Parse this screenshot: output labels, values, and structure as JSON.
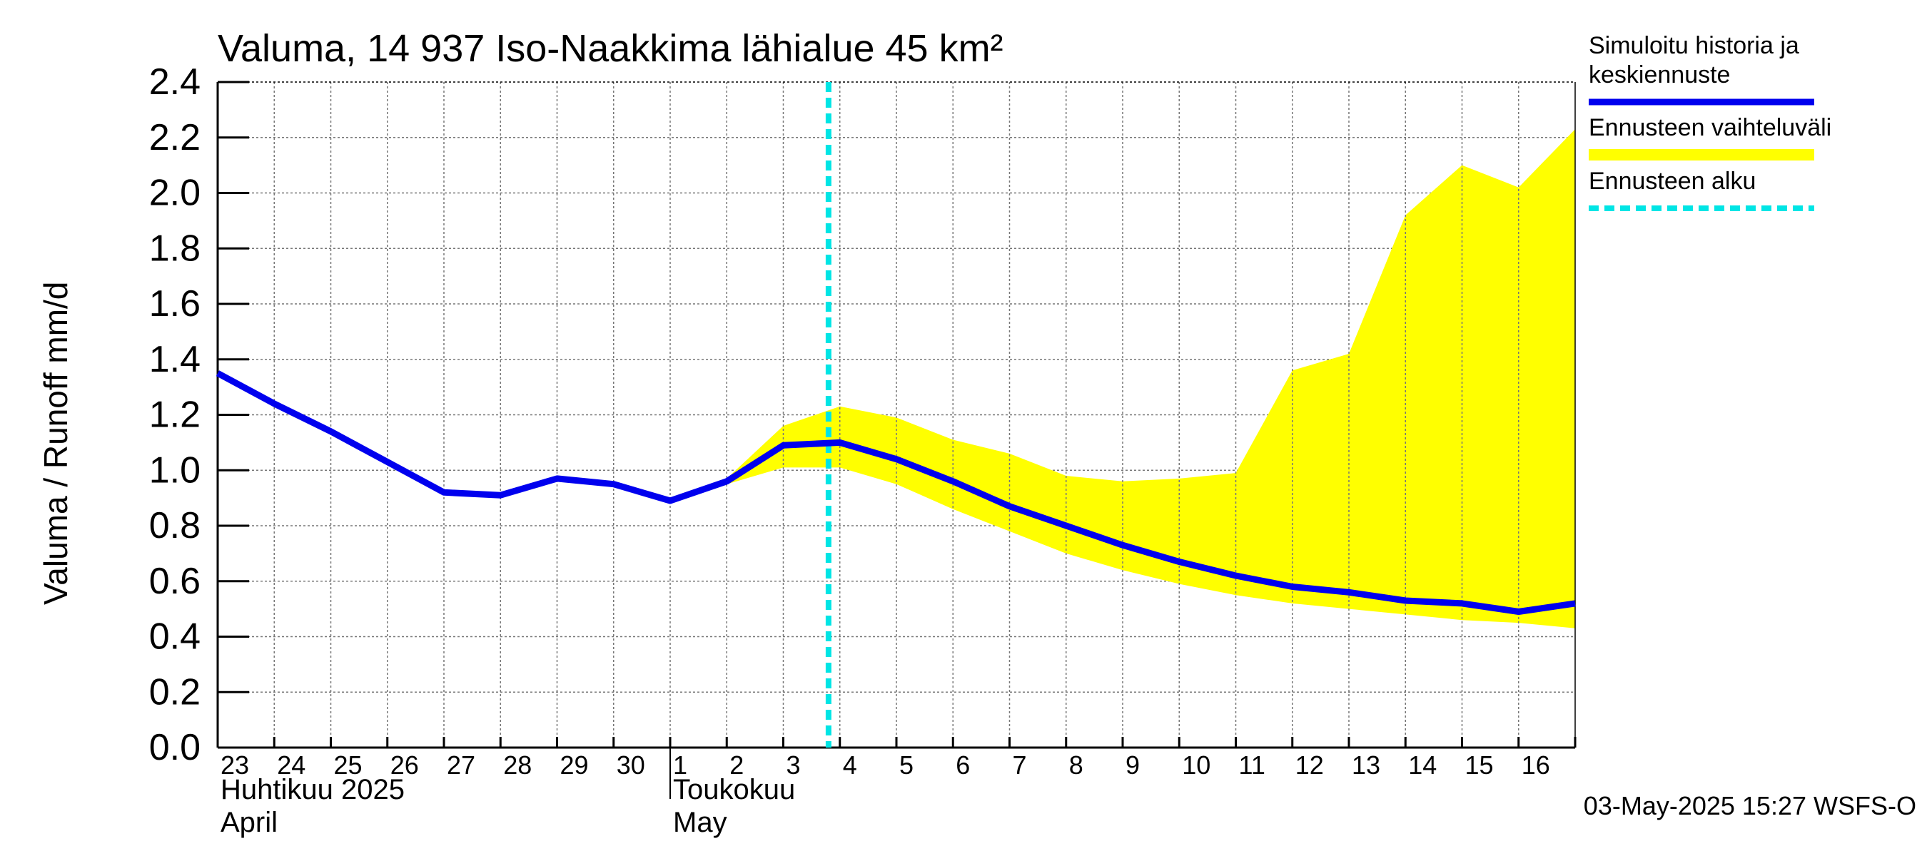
{
  "chart_data": {
    "type": "line",
    "title": "Valuma, 14 937 Iso-Naakkima lähialue 45 km²",
    "ylabel": "Valuma / Runoff     mm/d",
    "ylim": [
      0,
      2.4
    ],
    "yticks": [
      "0.0",
      "0.2",
      "0.4",
      "0.6",
      "0.8",
      "1.0",
      "1.2",
      "1.4",
      "1.6",
      "1.8",
      "2.0",
      "2.2",
      "2.4"
    ],
    "x_day_offset_range": [
      0,
      24
    ],
    "xtick_labels": [
      "23",
      "24",
      "25",
      "26",
      "27",
      "28",
      "29",
      "30",
      "1",
      "2",
      "3",
      "4",
      "5",
      "6",
      "7",
      "8",
      "9",
      "10",
      "11",
      "12",
      "13",
      "14",
      "15",
      "16"
    ],
    "month_labels": [
      {
        "fi": "Huhtikuu  2025",
        "en": "April",
        "start_offset": 0
      },
      {
        "fi": "Toukokuu",
        "en": "May",
        "start_offset": 8
      }
    ],
    "month_boundary_offset": 8,
    "forecast_start_offset": 10.8,
    "series": [
      {
        "name": "Simuloitu historia ja keskiennuste",
        "color": "#0000ee",
        "x": [
          0,
          1,
          2,
          3,
          4,
          5,
          6,
          7,
          8,
          9,
          10,
          11,
          12,
          13,
          14,
          15,
          16,
          17,
          18,
          19,
          20,
          21,
          22,
          23,
          24
        ],
        "y": [
          1.35,
          1.24,
          1.14,
          1.03,
          0.92,
          0.91,
          0.97,
          0.95,
          0.89,
          0.96,
          1.09,
          1.1,
          1.04,
          0.96,
          0.87,
          0.8,
          0.73,
          0.67,
          0.62,
          0.58,
          0.56,
          0.53,
          0.52,
          0.49,
          0.52
        ]
      }
    ],
    "band": {
      "name": "Ennusteen vaihteluväli",
      "color": "#ffff00",
      "x": [
        9,
        10,
        11,
        12,
        13,
        14,
        15,
        16,
        17,
        18,
        19,
        20,
        21,
        22,
        23,
        24
      ],
      "upper": [
        0.97,
        1.16,
        1.23,
        1.19,
        1.11,
        1.06,
        0.98,
        0.96,
        0.97,
        0.99,
        1.36,
        1.42,
        1.92,
        2.1,
        2.02,
        2.23
      ],
      "lower": [
        0.95,
        1.01,
        1.01,
        0.95,
        0.86,
        0.78,
        0.7,
        0.64,
        0.59,
        0.55,
        0.52,
        0.5,
        0.48,
        0.46,
        0.45,
        0.43
      ]
    },
    "legend": [
      {
        "label": "Simuloitu historia ja",
        "label2": "keskiennuste",
        "style": "line",
        "color": "#0000ee"
      },
      {
        "label": "Ennusteen vaihteluväli",
        "label2": "",
        "style": "band",
        "color": "#ffff00"
      },
      {
        "label": "Ennusteen alku",
        "label2": "",
        "style": "dashed",
        "color": "#00e5e5"
      }
    ],
    "footer": "03-May-2025 15:27 WSFS-O"
  }
}
